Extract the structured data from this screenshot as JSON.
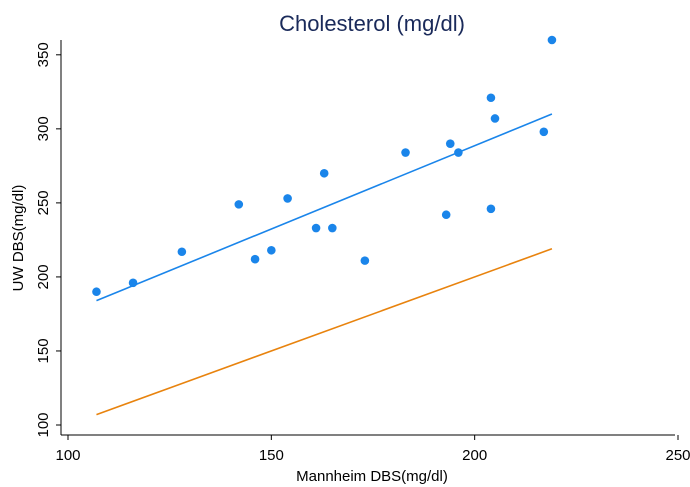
{
  "chart_data": {
    "type": "scatter",
    "title": "Cholesterol (mg/dl)",
    "xlabel": "Mannheim DBS(mg/dl)",
    "ylabel": "UW DBS(mg/dl)",
    "xlim": [
      100,
      250
    ],
    "ylim": [
      100,
      360
    ],
    "xticks": [
      100,
      150,
      200,
      250
    ],
    "yticks": [
      100,
      150,
      200,
      250,
      300,
      350
    ],
    "grid": false,
    "legend": "none",
    "series": [
      {
        "type": "scatter",
        "color": "#1a85ea",
        "points": [
          {
            "x": 107,
            "y": 190
          },
          {
            "x": 116,
            "y": 196
          },
          {
            "x": 128,
            "y": 217
          },
          {
            "x": 142,
            "y": 249
          },
          {
            "x": 146,
            "y": 212
          },
          {
            "x": 150,
            "y": 218
          },
          {
            "x": 154,
            "y": 253
          },
          {
            "x": 161,
            "y": 233
          },
          {
            "x": 163,
            "y": 270
          },
          {
            "x": 165,
            "y": 233
          },
          {
            "x": 173,
            "y": 211
          },
          {
            "x": 183,
            "y": 284
          },
          {
            "x": 193,
            "y": 242
          },
          {
            "x": 194,
            "y": 290
          },
          {
            "x": 196,
            "y": 284
          },
          {
            "x": 204,
            "y": 321
          },
          {
            "x": 204,
            "y": 246
          },
          {
            "x": 205,
            "y": 307
          },
          {
            "x": 217,
            "y": 298
          },
          {
            "x": 219,
            "y": 360
          }
        ]
      },
      {
        "type": "line",
        "color": "#1a85ea",
        "points": [
          {
            "x": 107,
            "y": 184
          },
          {
            "x": 219,
            "y": 310
          }
        ]
      },
      {
        "type": "line",
        "color": "#e8830e",
        "points": [
          {
            "x": 107,
            "y": 107
          },
          {
            "x": 219,
            "y": 219
          }
        ]
      }
    ]
  }
}
